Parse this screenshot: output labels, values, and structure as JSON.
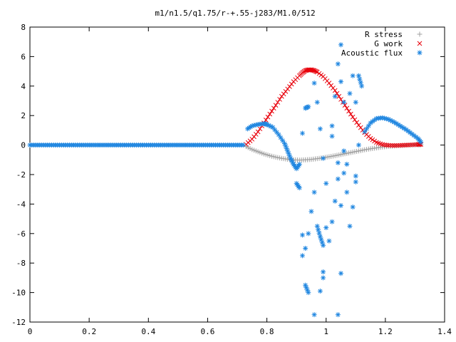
{
  "chart_data": {
    "type": "scatter",
    "title": "m1/n1.5/q1.75/r-+.55-j283/M1.0/512",
    "xlabel": "",
    "ylabel": "",
    "xlim": [
      0,
      1.4
    ],
    "ylim": [
      -12,
      8
    ],
    "x_ticks": [
      "0",
      "0.2",
      "0.4",
      "0.6",
      "0.8",
      "1",
      "1.2",
      "1.4"
    ],
    "y_ticks": [
      "8",
      "6",
      "4",
      "2",
      "0",
      "-2",
      "-4",
      "-6",
      "-8",
      "-10",
      "-12"
    ],
    "legend_position": "top-right",
    "grid": false,
    "series": [
      {
        "name": "R stress",
        "marker": "+",
        "color": "#a0a0a0",
        "points": [
          [
            0.73,
            -0.1
          ],
          [
            0.75,
            -0.3
          ],
          [
            0.77,
            -0.45
          ],
          [
            0.79,
            -0.6
          ],
          [
            0.81,
            -0.72
          ],
          [
            0.83,
            -0.82
          ],
          [
            0.85,
            -0.9
          ],
          [
            0.87,
            -0.96
          ],
          [
            0.89,
            -1.0
          ],
          [
            0.91,
            -1.02
          ],
          [
            0.93,
            -1.0
          ],
          [
            0.95,
            -0.97
          ],
          [
            0.97,
            -0.92
          ],
          [
            0.99,
            -0.86
          ],
          [
            1.01,
            -0.79
          ],
          [
            1.03,
            -0.72
          ],
          [
            1.05,
            -0.64
          ],
          [
            1.07,
            -0.56
          ],
          [
            1.09,
            -0.48
          ],
          [
            1.11,
            -0.4
          ],
          [
            1.13,
            -0.32
          ],
          [
            1.15,
            -0.25
          ],
          [
            1.17,
            -0.19
          ],
          [
            1.19,
            -0.13
          ],
          [
            1.21,
            -0.09
          ],
          [
            1.23,
            -0.06
          ],
          [
            1.25,
            -0.04
          ],
          [
            1.27,
            -0.02
          ],
          [
            1.29,
            0.0
          ],
          [
            1.31,
            0.02
          ],
          [
            1.32,
            0.03
          ]
        ]
      },
      {
        "name": "G work",
        "marker": "x",
        "color": "#e8000b",
        "points": [
          [
            0.73,
            0.05
          ],
          [
            0.75,
            0.4
          ],
          [
            0.77,
            0.9
          ],
          [
            0.79,
            1.5
          ],
          [
            0.81,
            2.1
          ],
          [
            0.83,
            2.7
          ],
          [
            0.85,
            3.3
          ],
          [
            0.87,
            3.8
          ],
          [
            0.89,
            4.3
          ],
          [
            0.91,
            4.7
          ],
          [
            0.92,
            4.9
          ],
          [
            0.93,
            5.05
          ],
          [
            0.94,
            5.1
          ],
          [
            0.95,
            5.1
          ],
          [
            0.96,
            5.05
          ],
          [
            0.97,
            4.95
          ],
          [
            0.99,
            4.65
          ],
          [
            1.01,
            4.2
          ],
          [
            1.03,
            3.7
          ],
          [
            1.05,
            3.1
          ],
          [
            1.07,
            2.5
          ],
          [
            1.09,
            1.9
          ],
          [
            1.11,
            1.35
          ],
          [
            1.13,
            0.85
          ],
          [
            1.15,
            0.45
          ],
          [
            1.17,
            0.18
          ],
          [
            1.19,
            0.04
          ],
          [
            1.21,
            -0.02
          ],
          [
            1.23,
            -0.03
          ],
          [
            1.25,
            -0.02
          ],
          [
            1.27,
            0.0
          ],
          [
            1.29,
            0.02
          ],
          [
            1.31,
            0.04
          ],
          [
            1.32,
            0.05
          ]
        ]
      },
      {
        "name": "Acoustic flux",
        "marker": "*",
        "color": "#1f86e0",
        "points": [
          [
            0.0,
            0.0
          ],
          [
            0.02,
            0.0
          ],
          [
            0.04,
            0.0
          ],
          [
            0.06,
            0.0
          ],
          [
            0.08,
            0.0
          ],
          [
            0.1,
            0.0
          ],
          [
            0.12,
            0.0
          ],
          [
            0.14,
            0.0
          ],
          [
            0.16,
            0.0
          ],
          [
            0.18,
            0.0
          ],
          [
            0.2,
            0.0
          ],
          [
            0.22,
            0.0
          ],
          [
            0.24,
            0.0
          ],
          [
            0.26,
            0.0
          ],
          [
            0.28,
            0.0
          ],
          [
            0.3,
            0.0
          ],
          [
            0.32,
            0.0
          ],
          [
            0.34,
            0.0
          ],
          [
            0.36,
            0.0
          ],
          [
            0.38,
            0.0
          ],
          [
            0.4,
            0.0
          ],
          [
            0.42,
            0.0
          ],
          [
            0.44,
            0.0
          ],
          [
            0.46,
            0.0
          ],
          [
            0.48,
            0.0
          ],
          [
            0.5,
            0.0
          ],
          [
            0.52,
            0.0
          ],
          [
            0.54,
            0.0
          ],
          [
            0.56,
            0.0
          ],
          [
            0.58,
            0.0
          ],
          [
            0.6,
            0.0
          ],
          [
            0.62,
            0.0
          ],
          [
            0.64,
            0.0
          ],
          [
            0.66,
            0.0
          ],
          [
            0.68,
            0.0
          ],
          [
            0.7,
            0.0
          ],
          [
            0.72,
            0.0
          ],
          [
            0.735,
            1.1
          ],
          [
            0.75,
            1.3
          ],
          [
            0.77,
            1.4
          ],
          [
            0.79,
            1.45
          ],
          [
            0.8,
            1.4
          ],
          [
            0.82,
            1.2
          ],
          [
            0.84,
            0.7
          ],
          [
            0.86,
            0.1
          ],
          [
            0.87,
            -0.4
          ],
          [
            0.88,
            -0.9
          ],
          [
            0.89,
            -1.3
          ],
          [
            0.9,
            -1.6
          ],
          [
            0.91,
            -1.3
          ],
          [
            0.9,
            -2.6
          ],
          [
            0.91,
            -2.9
          ],
          [
            0.92,
            -6.1
          ],
          [
            0.93,
            -7.0
          ],
          [
            0.93,
            -9.5
          ],
          [
            0.94,
            -10.0
          ],
          [
            0.92,
            -7.5
          ],
          [
            0.94,
            -6.0
          ],
          [
            0.95,
            -4.5
          ],
          [
            0.96,
            -3.2
          ],
          [
            0.97,
            -5.5
          ],
          [
            0.98,
            -6.2
          ],
          [
            0.99,
            -6.8
          ],
          [
            1.0,
            -5.6
          ],
          [
            1.01,
            -6.5
          ],
          [
            1.02,
            -5.2
          ],
          [
            1.03,
            -3.8
          ],
          [
            1.04,
            -2.3
          ],
          [
            1.05,
            -4.1
          ],
          [
            1.06,
            -1.9
          ],
          [
            1.07,
            -3.2
          ],
          [
            1.08,
            -5.5
          ],
          [
            1.09,
            -4.2
          ],
          [
            1.1,
            -2.5
          ],
          [
            0.96,
            -11.5
          ],
          [
            1.04,
            -11.5
          ],
          [
            0.99,
            -8.6
          ],
          [
            1.05,
            -8.7
          ],
          [
            0.98,
            -9.9
          ],
          [
            0.99,
            -9.0
          ],
          [
            0.92,
            0.8
          ],
          [
            0.93,
            2.5
          ],
          [
            0.94,
            2.6
          ],
          [
            0.96,
            4.2
          ],
          [
            0.97,
            2.9
          ],
          [
            0.98,
            1.1
          ],
          [
            0.99,
            -0.9
          ],
          [
            1.0,
            -2.6
          ],
          [
            1.02,
            0.6
          ],
          [
            1.03,
            3.3
          ],
          [
            1.04,
            5.5
          ],
          [
            1.05,
            4.3
          ],
          [
            1.06,
            2.9
          ],
          [
            1.07,
            -1.3
          ],
          [
            1.08,
            3.5
          ],
          [
            1.09,
            4.7
          ],
          [
            1.1,
            -2.1
          ],
          [
            1.11,
            4.7
          ],
          [
            1.12,
            4.0
          ],
          [
            1.06,
            -0.4
          ],
          [
            1.04,
            -1.2
          ],
          [
            1.02,
            1.3
          ],
          [
            1.1,
            2.9
          ],
          [
            1.05,
            6.8
          ],
          [
            1.11,
            0.0
          ],
          [
            1.13,
            0.9
          ],
          [
            1.15,
            1.5
          ],
          [
            1.17,
            1.8
          ],
          [
            1.19,
            1.85
          ],
          [
            1.21,
            1.75
          ],
          [
            1.23,
            1.55
          ],
          [
            1.25,
            1.3
          ],
          [
            1.27,
            1.05
          ],
          [
            1.29,
            0.75
          ],
          [
            1.31,
            0.45
          ],
          [
            1.32,
            0.2
          ]
        ]
      }
    ]
  }
}
